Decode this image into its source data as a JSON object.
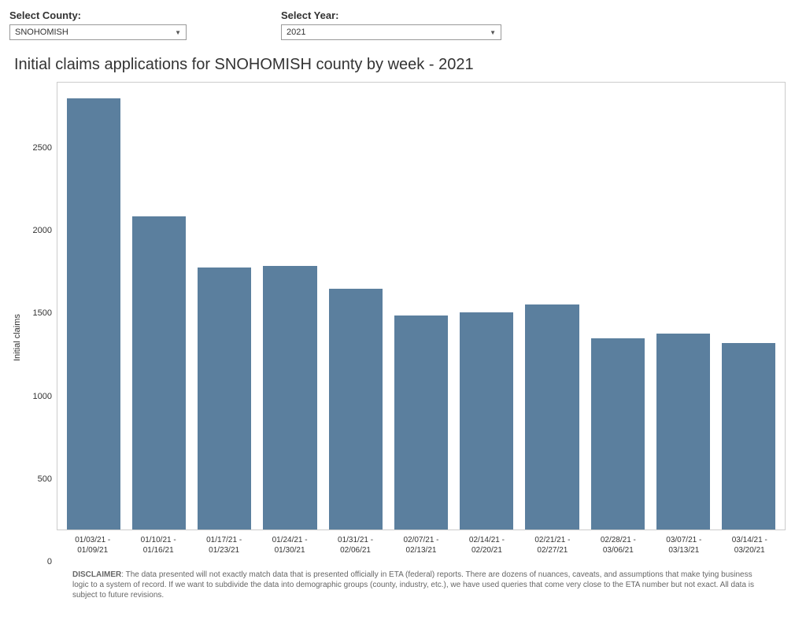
{
  "controls": {
    "county_label": "Select County:",
    "county_value": "SNOHOMISH",
    "year_label": "Select Year:",
    "year_value": "2021"
  },
  "chart": {
    "type": "bar",
    "title": "Initial claims applications for SNOHOMISH county by week - 2021",
    "y_axis_label": "Initial claims",
    "categories": [
      "01/03/21 - 01/09/21",
      "01/10/21 - 01/16/21",
      "01/17/21 - 01/23/21",
      "01/24/21 - 01/30/21",
      "01/31/21 - 02/06/21",
      "02/07/21 - 02/13/21",
      "02/14/21 - 02/20/21",
      "02/21/21 - 02/27/21",
      "02/28/21 - 03/06/21",
      "03/07/21 - 03/13/21",
      "03/14/21 - 03/20/21"
    ],
    "values": [
      2800,
      2030,
      1700,
      1710,
      1560,
      1390,
      1410,
      1460,
      1240,
      1270,
      1210
    ],
    "bar_color": "#5b7f9e",
    "ylim": [
      0,
      2900
    ],
    "yticks": [
      0,
      500,
      1000,
      1500,
      2000,
      2500
    ],
    "background_color": "#ffffff",
    "border_color": "#cccccc",
    "tick_fontsize": 11,
    "title_fontsize": 20,
    "bar_width": 0.82
  },
  "disclaimer": {
    "label": "DISCLAIMER",
    "text": ": The data presented will not exactly match data that is presented officially in ETA (federal) reports. There are dozens of nuances, caveats, and assumptions that make tying business logic to a system of record. If we want to subdivide the data into demographic groups (county, industry, etc.), we have used queries that come very close to the ETA number but not exact.  All data is subject to future revisions."
  }
}
